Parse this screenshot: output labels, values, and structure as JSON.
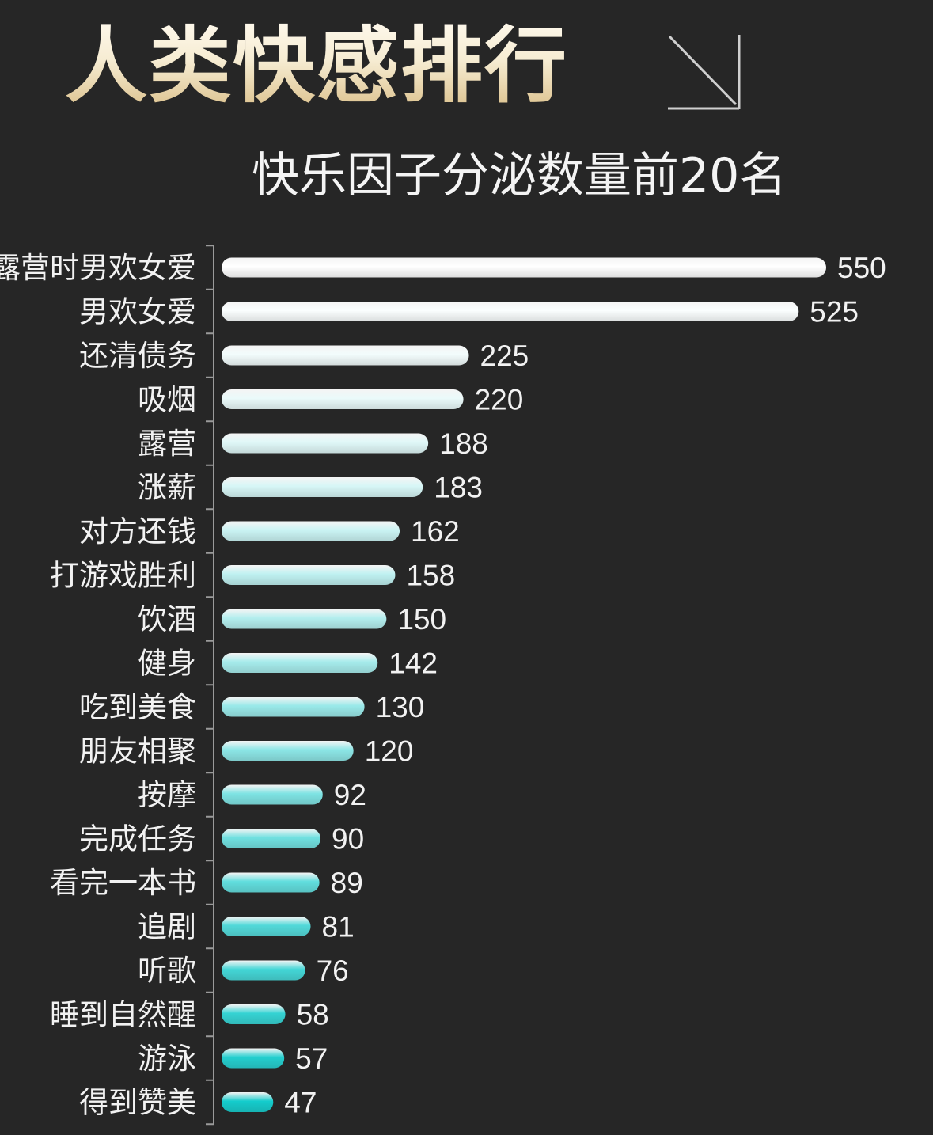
{
  "title": "人类快感排行",
  "subtitle": "快乐因子分泌数量前20名",
  "icons": {
    "title_arrow": "arrow-down-right-icon"
  },
  "colors": {
    "background": "#262626",
    "bar_top": "#ffffff",
    "bar_bottom": "#14cccc",
    "text": "#f2f2f2",
    "title_gold": "#e8d3a0"
  },
  "chart_data": {
    "type": "bar",
    "orientation": "horizontal",
    "title": "快乐因子分泌数量前20名",
    "xlabel": "",
    "ylabel": "",
    "xlim": [
      0,
      550
    ],
    "grid": false,
    "categories": [
      "露营时男欢女爱",
      "男欢女爱",
      "还清债务",
      "吸烟",
      "露营",
      "涨薪",
      "对方还钱",
      "打游戏胜利",
      "饮酒",
      "健身",
      "吃到美食",
      "朋友相聚",
      "按摩",
      "完成任务",
      "看完一本书",
      "追剧",
      "听歌",
      "睡到自然醒",
      "游泳",
      "得到赞美"
    ],
    "values": [
      550,
      525,
      225,
      220,
      188,
      183,
      162,
      158,
      150,
      142,
      130,
      120,
      92,
      90,
      89,
      81,
      76,
      58,
      57,
      47
    ]
  }
}
